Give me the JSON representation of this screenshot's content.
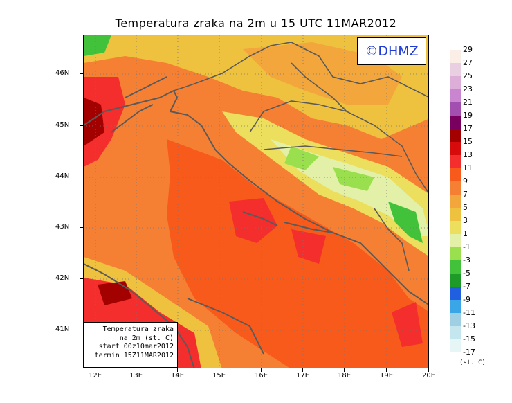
{
  "title": "Temperatura zraka na 2m u 15 UTC 11MAR2012",
  "logo": "©DHMZ",
  "info_box": {
    "line1": "Temperatura zraka",
    "line2": "na 2m (st. C)",
    "line3": "start 00z10mar2012",
    "line4": "termin 15Z11MAR2012"
  },
  "lat_labels": [
    "46N",
    "45N",
    "44N",
    "43N",
    "42N",
    "41N"
  ],
  "lon_labels": [
    "12E",
    "13E",
    "14E",
    "15E",
    "16E",
    "17E",
    "18E",
    "19E",
    "20E"
  ],
  "legend_unit": "(st. C)",
  "legend": [
    {
      "label": "29",
      "color": "#fbeee6"
    },
    {
      "label": "27",
      "color": "#e9cfe1"
    },
    {
      "label": "25",
      "color": "#dcaed8"
    },
    {
      "label": "23",
      "color": "#c985cf"
    },
    {
      "label": "21",
      "color": "#a24fb0"
    },
    {
      "label": "19",
      "color": "#7a0060"
    },
    {
      "label": "17",
      "color": "#a30000"
    },
    {
      "label": "15",
      "color": "#d70b0b"
    },
    {
      "label": "13",
      "color": "#f42d2d"
    },
    {
      "label": "11",
      "color": "#f75a1a"
    },
    {
      "label": "9",
      "color": "#f58034"
    },
    {
      "label": "7",
      "color": "#f2a63b"
    },
    {
      "label": "5",
      "color": "#eec23f"
    },
    {
      "label": "3",
      "color": "#ecdf5d"
    },
    {
      "label": "1",
      "color": "#e3f0a8"
    },
    {
      "label": "-1",
      "color": "#9adf4e"
    },
    {
      "label": "-3",
      "color": "#42c23a"
    },
    {
      "label": "-5",
      "color": "#1e9a28"
    },
    {
      "label": "-7",
      "color": "#1f5fe0"
    },
    {
      "label": "-9",
      "color": "#3aa6e8"
    },
    {
      "label": "-11",
      "color": "#9fcfe2"
    },
    {
      "label": "-13",
      "color": "#c4e7ef"
    },
    {
      "label": "-15",
      "color": "#e6f6f7"
    },
    {
      "label": "-17",
      "color": ""
    }
  ]
}
